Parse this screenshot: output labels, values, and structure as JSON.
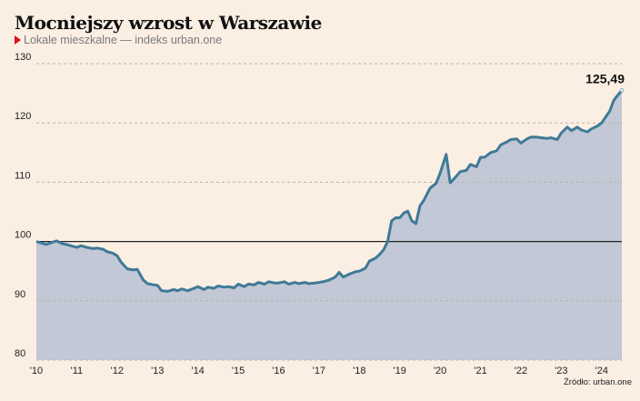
{
  "chart_data": {
    "type": "area",
    "title": "Mocniejszy wzrost w Warszawie",
    "subtitle": "Lokale mieszkalne — indeks urban.one",
    "source": "Źródło: urban.one",
    "xlabel": "",
    "ylabel": "",
    "xlim": [
      2010,
      2024.5
    ],
    "ylim": [
      80,
      130
    ],
    "y_ticks": [
      80,
      90,
      100,
      110,
      120,
      130
    ],
    "x_ticks": [
      {
        "value": 2010,
        "label": "'10"
      },
      {
        "value": 2011,
        "label": "'11"
      },
      {
        "value": 2012,
        "label": "'12"
      },
      {
        "value": 2013,
        "label": "'13"
      },
      {
        "value": 2014,
        "label": "'14"
      },
      {
        "value": 2015,
        "label": "'15"
      },
      {
        "value": 2016,
        "label": "'16"
      },
      {
        "value": 2017,
        "label": "'17"
      },
      {
        "value": 2018,
        "label": "'18"
      },
      {
        "value": 2019,
        "label": "'19"
      },
      {
        "value": 2020,
        "label": "'20"
      },
      {
        "value": 2021,
        "label": "'21"
      },
      {
        "value": 2022,
        "label": "'22"
      },
      {
        "value": 2023,
        "label": "'23"
      },
      {
        "value": 2024,
        "label": "'24"
      }
    ],
    "reference_line": 100,
    "end_label": "125,49",
    "grid": true,
    "colors": {
      "line": "#3f7a96",
      "fill": "#c2c8d6",
      "grid": "#b9b3ad",
      "ref": "#222222",
      "accent": "#d7141a"
    },
    "x": [
      2010,
      2010.1,
      2010.25,
      2010.4,
      2010.5,
      2010.65,
      2010.75,
      2010.9,
      2011,
      2011.1,
      2011.25,
      2011.4,
      2011.5,
      2011.65,
      2011.75,
      2011.9,
      2012,
      2012.1,
      2012.25,
      2012.4,
      2012.5,
      2012.65,
      2012.75,
      2012.9,
      2013,
      2013.1,
      2013.25,
      2013.4,
      2013.5,
      2013.6,
      2013.75,
      2013.9,
      2014,
      2014.15,
      2014.25,
      2014.4,
      2014.5,
      2014.65,
      2014.75,
      2014.9,
      2015,
      2015.15,
      2015.25,
      2015.4,
      2015.5,
      2015.65,
      2015.75,
      2015.9,
      2016,
      2016.15,
      2016.25,
      2016.4,
      2016.5,
      2016.65,
      2016.75,
      2016.9,
      2017,
      2017.15,
      2017.25,
      2017.4,
      2017.5,
      2017.6,
      2017.75,
      2017.9,
      2018,
      2018.15,
      2018.25,
      2018.4,
      2018.5,
      2018.6,
      2018.7,
      2018.8,
      2018.9,
      2019,
      2019.1,
      2019.2,
      2019.3,
      2019.4,
      2019.5,
      2019.6,
      2019.75,
      2019.9,
      2020,
      2020.15,
      2020.25,
      2020.4,
      2020.5,
      2020.65,
      2020.75,
      2020.9,
      2021,
      2021.1,
      2021.25,
      2021.4,
      2021.5,
      2021.65,
      2021.75,
      2021.9,
      2022,
      2022.15,
      2022.25,
      2022.4,
      2022.5,
      2022.65,
      2022.75,
      2022.9,
      2023,
      2023.15,
      2023.25,
      2023.4,
      2023.5,
      2023.65,
      2023.75,
      2023.9,
      2024,
      2024.1,
      2024.2,
      2024.3,
      2024.4,
      2024.5
    ],
    "y": [
      100,
      99.8,
      99.5,
      99.9,
      100.1,
      99.6,
      99.5,
      99.2,
      99.0,
      99.3,
      99.0,
      98.8,
      98.9,
      98.7,
      98.3,
      98.0,
      97.6,
      96.5,
      95.4,
      95.2,
      95.3,
      93.5,
      92.9,
      92.7,
      92.6,
      91.7,
      91.6,
      91.9,
      91.7,
      92.0,
      91.7,
      92.1,
      92.4,
      91.9,
      92.3,
      92.1,
      92.5,
      92.3,
      92.4,
      92.2,
      92.8,
      92.4,
      92.8,
      92.7,
      93.1,
      92.8,
      93.2,
      93.0,
      93.0,
      93.2,
      92.8,
      93.1,
      92.9,
      93.1,
      92.9,
      93.0,
      93.1,
      93.3,
      93.5,
      94.0,
      94.8,
      94.0,
      94.5,
      94.9,
      95.0,
      95.5,
      96.7,
      97.2,
      97.8,
      98.6,
      100,
      103.5,
      104.0,
      104.0,
      104.8,
      105.1,
      103.5,
      103.0,
      106.0,
      107.0,
      109.0,
      109.8,
      111.5,
      114.7,
      109.9,
      111.0,
      111.8,
      112.0,
      113.0,
      112.6,
      114.2,
      114.2,
      115.0,
      115.3,
      116.3,
      116.8,
      117.2,
      117.3,
      116.6,
      117.3,
      117.6,
      117.6,
      117.5,
      117.4,
      117.5,
      117.2,
      118.3,
      119.3,
      118.7,
      119.3,
      118.8,
      118.5,
      119.0,
      119.5,
      120.0,
      121.0,
      122.0,
      123.8,
      124.7,
      125.49
    ]
  }
}
